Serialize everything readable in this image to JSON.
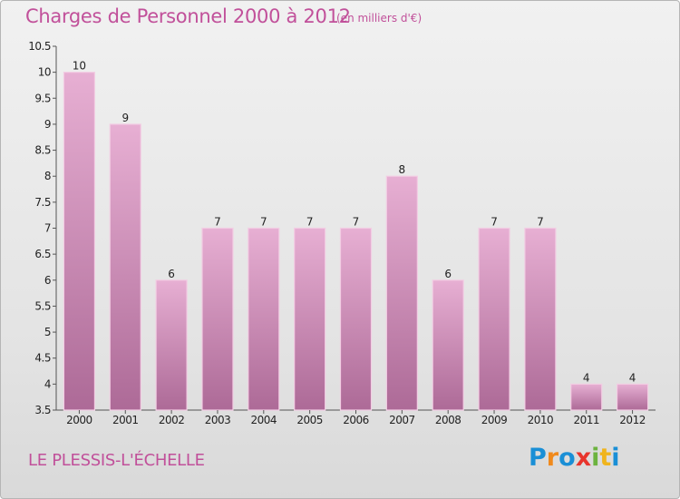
{
  "title": "Charges de Personnel 2000 à 2012",
  "unit_note": "(en milliers d'€)",
  "commune": "LE PLESSIS-L'ÉCHELLE",
  "logo": {
    "text": "Proxiti",
    "letters": [
      {
        "ch": "P",
        "color": "#1a8fd6"
      },
      {
        "ch": "r",
        "color": "#f08a1c"
      },
      {
        "ch": "o",
        "color": "#1a8fd6"
      },
      {
        "ch": "x",
        "color": "#e8342c"
      },
      {
        "ch": "i",
        "color": "#6cb33f"
      },
      {
        "ch": "t",
        "color": "#f0b41c"
      },
      {
        "ch": "i",
        "color": "#1a8fd6"
      }
    ]
  },
  "colors": {
    "bar_top": "#e7afd3",
    "bar_bottom": "#ad6a97",
    "bar_edge": "#f2cde3",
    "text": "#c1509a",
    "axis_text": "#222222"
  },
  "chart_data": {
    "type": "bar",
    "categories": [
      "2000",
      "2001",
      "2002",
      "2003",
      "2004",
      "2005",
      "2006",
      "2007",
      "2008",
      "2009",
      "2010",
      "2011",
      "2012"
    ],
    "values": [
      10,
      9,
      6,
      7,
      7,
      7,
      7,
      8,
      6,
      7,
      7,
      4,
      4
    ],
    "ylim": [
      3.5,
      10.5
    ],
    "yticks": [
      3.5,
      4,
      4.5,
      5,
      5.5,
      6,
      6.5,
      7,
      7.5,
      8,
      8.5,
      9,
      9.5,
      10,
      10.5
    ],
    "grid": false
  }
}
